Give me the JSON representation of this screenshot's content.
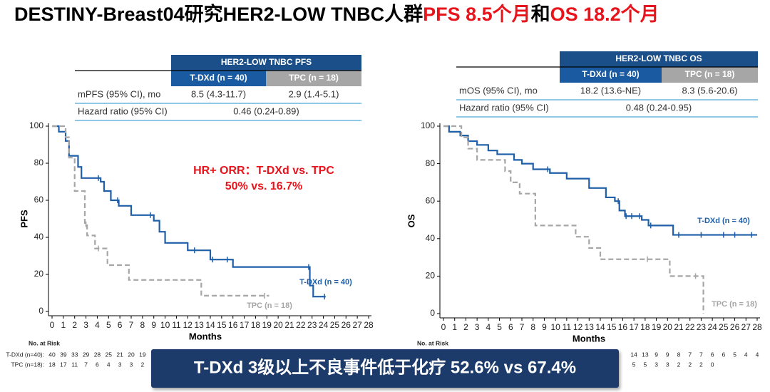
{
  "title": [
    "DESTINY-Breast04研究HER2-LOW TNBC人群",
    "PFS 8.5个月",
    "和",
    "OS 18.2个月"
  ],
  "banner": "T-DXd 3级以上不良事件低于化疗 52.6% vs 67.4%",
  "chart_data": [
    {
      "type": "step",
      "table": {
        "title": "HER2-LOW TNBC PFS",
        "columns": [
          "T-DXd (n = 40)",
          "TPC (n = 18)"
        ],
        "rows": [
          [
            "mPFS (95% CI), mo",
            "8.5 (4.3-11.7)",
            "2.9 (1.4-5.1)"
          ],
          [
            "Hazard ratio (95% CI)",
            "0.46 (0.24-0.89)"
          ]
        ]
      },
      "ylabel": "PFS",
      "xlabel": "Months",
      "annotation": [
        "HR+ ORR：T-DXd vs. TPC",
        "50% vs. 16.7%"
      ],
      "xlim": [
        0,
        28
      ],
      "xticks": [
        0,
        1,
        2,
        3,
        4,
        5,
        6,
        7,
        8,
        9,
        10,
        11,
        12,
        13,
        14,
        15,
        16,
        17,
        18,
        19,
        20,
        21,
        22,
        23,
        24,
        25,
        26,
        27,
        28
      ],
      "ylim": [
        0,
        100
      ],
      "yticks": [
        0,
        20,
        40,
        60,
        80,
        100
      ],
      "series": [
        {
          "name": "T-DXd (n = 40)",
          "color": "#1f5fa8",
          "line_style": "solid",
          "x": [
            0,
            0.6,
            1.2,
            1.5,
            2.3,
            2.6,
            4.3,
            4.6,
            5.2,
            5.9,
            7,
            9,
            9.5,
            10,
            12,
            14,
            16,
            22.8,
            23.1,
            24.2
          ],
          "values": [
            100,
            97,
            92,
            84,
            78,
            72,
            70,
            65,
            60,
            57,
            52,
            49,
            43,
            37,
            33,
            28,
            24,
            14,
            8,
            8
          ],
          "censored": [
            4.1,
            5.8,
            8.7,
            12.6,
            14.2,
            15.5,
            22.7,
            24.1
          ]
        },
        {
          "name": "TPC (n = 18)",
          "color": "#a6a6a6",
          "line_style": "dashed",
          "x": [
            0,
            1.2,
            1.5,
            2,
            2.9,
            3.1,
            3.8,
            4.9,
            6.8,
            13.2,
            19.2
          ],
          "values": [
            100,
            94,
            83,
            65,
            47,
            41,
            34,
            25,
            17,
            8.5,
            8.5
          ],
          "censored": [
            3,
            4.1,
            18.8
          ]
        }
      ],
      "risk": {
        "title": "No. at Risk",
        "labels": [
          "T-DXd (n=40):",
          "TPC (n=18):"
        ],
        "rows": [
          [
            40,
            39,
            33,
            29,
            28,
            25,
            21,
            20,
            19,
            null,
            null,
            null,
            null,
            null,
            null,
            null,
            null,
            null,
            null,
            null,
            null,
            null,
            null,
            null,
            null,
            null,
            null,
            null,
            null
          ],
          [
            18,
            17,
            11,
            7,
            6,
            4,
            3,
            3,
            2,
            null,
            null,
            null,
            null,
            null,
            null,
            null,
            null,
            null,
            null,
            null,
            null,
            null,
            null,
            null,
            null,
            null,
            null,
            null,
            null
          ]
        ]
      }
    },
    {
      "type": "step",
      "table": {
        "title": "HER2-LOW TNBC OS",
        "columns": [
          "T-DXd (n = 40)",
          "TPC (n = 18)"
        ],
        "rows": [
          [
            "mOS (95% CI), mo",
            "18.2 (13.6-NE)",
            "8.3 (5.6-20.6)"
          ],
          [
            "Hazard ratio (95% CI)",
            "0.48 (0.24-0.95)"
          ]
        ]
      },
      "ylabel": "OS",
      "xlabel": "Months",
      "xlim": [
        0,
        28
      ],
      "xticks": [
        0,
        1,
        2,
        3,
        4,
        5,
        6,
        7,
        8,
        9,
        10,
        11,
        12,
        13,
        14,
        15,
        16,
        17,
        18,
        19,
        20,
        21,
        22,
        23,
        24,
        25,
        26,
        27,
        28
      ],
      "ylim": [
        0,
        100
      ],
      "yticks": [
        0,
        20,
        40,
        60,
        80,
        100
      ],
      "series": [
        {
          "name": "T-DXd (n = 40)",
          "color": "#1f5fa8",
          "line_style": "solid",
          "x": [
            0,
            0.5,
            1.5,
            2.2,
            3,
            4,
            4.8,
            6.3,
            7,
            8,
            9.5,
            11,
            13,
            14.5,
            15.3,
            15.7,
            16.2,
            17.7,
            18.3,
            20.5,
            28
          ],
          "values": [
            100,
            97,
            95,
            92,
            90,
            87,
            85,
            82,
            80,
            77,
            75,
            72,
            67,
            62,
            60,
            55,
            52,
            50,
            47,
            42,
            42
          ],
          "censored": [
            9.3,
            15.6,
            16.3,
            16.8,
            17.5,
            18.5,
            21,
            23,
            25,
            26,
            27.5
          ]
        },
        {
          "name": "TPC (n = 18)",
          "color": "#a6a6a6",
          "line_style": "dashed",
          "x": [
            0,
            1.6,
            2.2,
            3,
            5.5,
            6,
            6.8,
            8.2,
            11.8,
            13,
            14,
            20.2,
            23.2
          ],
          "values": [
            100,
            94,
            88,
            82,
            76,
            70,
            64,
            47,
            41,
            35,
            29,
            20,
            0
          ],
          "censored": [
            18.2,
            22.5
          ]
        }
      ],
      "risk": {
        "title": "No. at Risk",
        "rows": [
          [
            null,
            null,
            null,
            null,
            null,
            null,
            null,
            null,
            null,
            null,
            null,
            null,
            null,
            null,
            null,
            null,
            null,
            14,
            13,
            9,
            9,
            8,
            7,
            7,
            6,
            6,
            5,
            4,
            4
          ],
          [
            null,
            null,
            null,
            null,
            null,
            null,
            null,
            null,
            null,
            null,
            null,
            null,
            null,
            null,
            null,
            null,
            null,
            5,
            5,
            3,
            3,
            2,
            2,
            2,
            0,
            null,
            null,
            null,
            null
          ]
        ]
      }
    }
  ]
}
